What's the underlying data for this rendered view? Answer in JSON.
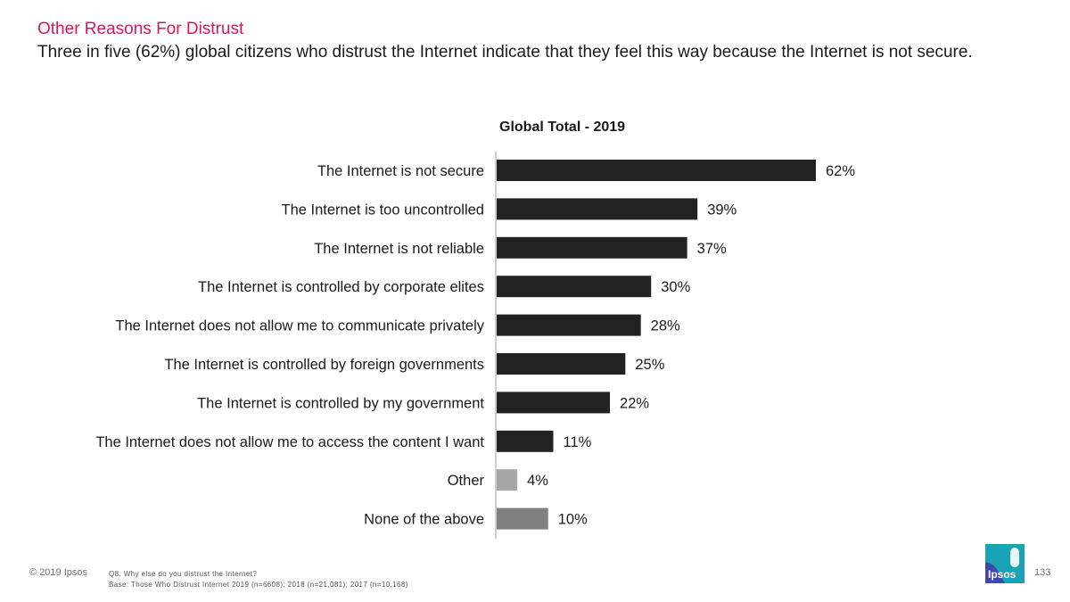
{
  "header": {
    "title": "Other Reasons For Distrust",
    "subtitle": "Three in five (62%) global citizens who distrust the Internet indicate that they feel this way because the Internet is not secure."
  },
  "chart_data": {
    "type": "bar",
    "orientation": "horizontal",
    "title": "Global Total - 2019",
    "categories": [
      "The Internet is not secure",
      "The Internet is too uncontrolled",
      "The Internet is not reliable",
      "The Internet is controlled by corporate elites",
      "The Internet does not allow me to communicate privately",
      "The Internet is controlled by foreign governments",
      "The Internet is controlled by my government",
      "The Internet does not allow me to access the content I want",
      "Other",
      "None of the above"
    ],
    "values": [
      62,
      39,
      37,
      30,
      28,
      25,
      22,
      11,
      4,
      10
    ],
    "value_labels": [
      "62%",
      "39%",
      "37%",
      "30%",
      "28%",
      "25%",
      "22%",
      "11%",
      "4%",
      "10%"
    ],
    "colors": [
      "#222222",
      "#222222",
      "#222222",
      "#222222",
      "#222222",
      "#222222",
      "#222222",
      "#222222",
      "#a6a6a6",
      "#808080"
    ],
    "xlim": [
      0,
      100
    ],
    "grid": false,
    "legend": "none"
  },
  "footer": {
    "copyright": "© 2019 Ipsos",
    "question": "Q8.  Why else do you distrust the Internet?",
    "base": "Base: Those Who Distrust Internet 2019 (n=6608); 2018 (n=21,081); 2017 (n=10,168)",
    "page_number": "133"
  },
  "logo": {
    "text": "Ipsos",
    "color": "#1aa3b5",
    "accent": "#3f4aa8"
  }
}
